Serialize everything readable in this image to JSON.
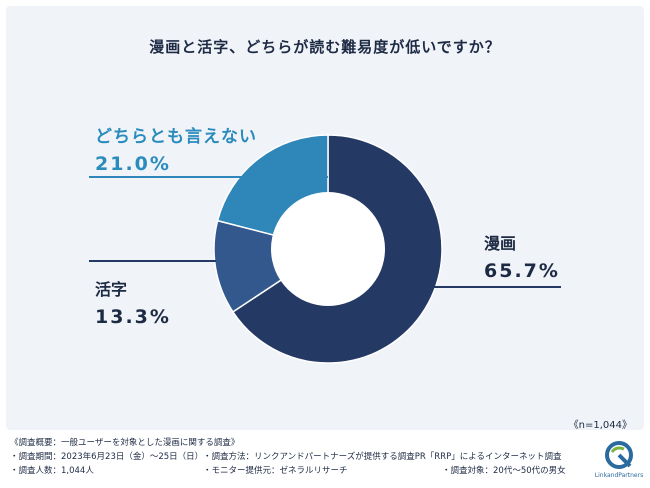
{
  "chart_data": {
    "type": "pie",
    "title": "漫画と活字、どちらが読む難易度が低いですか？",
    "sample_size": "《n=1,044》",
    "slices": [
      {
        "name": "漫画",
        "value": 65.7,
        "display": "65.7%",
        "color": "#243a64"
      },
      {
        "name": "活字",
        "value": 13.3,
        "display": "13.3%",
        "color": "#33588e"
      },
      {
        "name": "どちらとも言えない",
        "value": 21.0,
        "display": "21.0%",
        "color": "#2e86b9"
      }
    ],
    "donut": true,
    "start_angle_deg": 0,
    "direction": "clockwise"
  },
  "footer": {
    "heading": "《調査概要：一般ユーザーを対象とした漫画に関する調査》",
    "period": "・調査期間：2023年6月23日（金）〜25日（日）",
    "method": "・調査方法：リンクアンドパートナーズが提供する調査PR「RRP」によるインターネット調査",
    "count": "・調査人数：1,044人",
    "monitor": "・モニター提供元：ゼネラルリサーチ",
    "target": "・調査対象：20代〜50代の男女"
  },
  "logo": {
    "text": "LinkandPartners",
    "color": "#2a6a9e",
    "accent": "#7cb342"
  }
}
